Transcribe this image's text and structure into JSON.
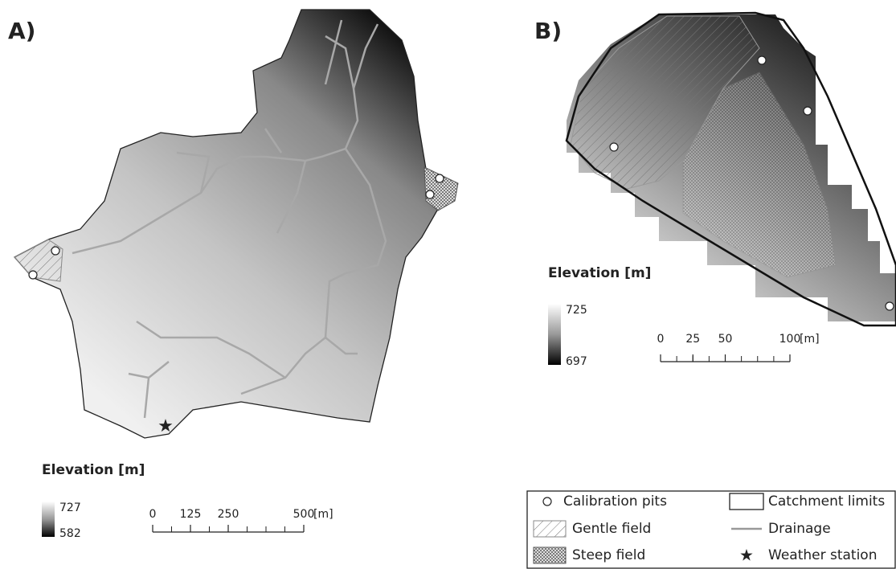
{
  "panels": [
    {
      "label": "A)",
      "elevation_title": "Elevation [m]",
      "elevation_max": "727",
      "elevation_min": "582",
      "scale_ticks": [
        0,
        125,
        250,
        500
      ],
      "scale_unit": "[m]"
    },
    {
      "label": "B)",
      "elevation_title": "Elevation [m]",
      "elevation_max": "725",
      "elevation_min": "697",
      "scale_ticks": [
        0,
        25,
        50,
        100
      ],
      "scale_unit": "[m]"
    }
  ],
  "legend": {
    "items": [
      "Calibration pits",
      "Catchment limits",
      "Gentle field",
      "Drainage",
      "Steep field",
      "Weather station"
    ]
  }
}
